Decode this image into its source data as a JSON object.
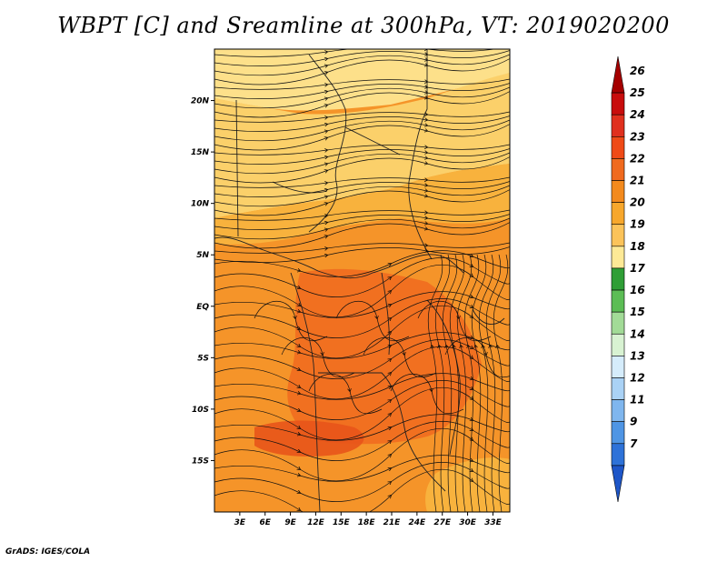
{
  "title": "WBPT [C] and Sreamline at 300hPa, VT: 2019020200",
  "footer": "GrADS: IGES/COLA",
  "map": {
    "lat_range": [
      -20,
      25
    ],
    "lon_range": [
      0,
      35
    ],
    "lat_ticks": [
      {
        "value": 20,
        "label": "20N"
      },
      {
        "value": 15,
        "label": "15N"
      },
      {
        "value": 10,
        "label": "10N"
      },
      {
        "value": 5,
        "label": "5N"
      },
      {
        "value": 0,
        "label": "EQ"
      },
      {
        "value": -5,
        "label": "5S"
      },
      {
        "value": -10,
        "label": "10S"
      },
      {
        "value": -15,
        "label": "15S"
      }
    ],
    "lon_ticks": [
      {
        "value": 3,
        "label": "3E"
      },
      {
        "value": 6,
        "label": "6E"
      },
      {
        "value": 9,
        "label": "9E"
      },
      {
        "value": 12,
        "label": "12E"
      },
      {
        "value": 15,
        "label": "15E"
      },
      {
        "value": 18,
        "label": "18E"
      },
      {
        "value": 21,
        "label": "21E"
      },
      {
        "value": 24,
        "label": "24E"
      },
      {
        "value": 27,
        "label": "27E"
      },
      {
        "value": 30,
        "label": "30E"
      },
      {
        "value": 33,
        "label": "33E"
      }
    ],
    "field_colors": {
      "pale": "#fde08a",
      "light": "#fbd06a",
      "mid": "#f8b23d",
      "orange": "#f59429",
      "deep": "#f06a1e",
      "red": "#e8541a"
    }
  },
  "colorbar": {
    "labels": [
      "26",
      "25",
      "24",
      "23",
      "22",
      "21",
      "20",
      "19",
      "18",
      "17",
      "16",
      "15",
      "14",
      "13",
      "12",
      "11",
      "9",
      "7"
    ],
    "colors": [
      "#a50000",
      "#c80d0d",
      "#e0301e",
      "#ef4a17",
      "#f06a1e",
      "#f38a1d",
      "#f7a72c",
      "#fbc35a",
      "#fde996",
      "#2f9e36",
      "#5cbd55",
      "#a2db97",
      "#d8f2d2",
      "#d5ecfb",
      "#aad2f5",
      "#7fb6ee",
      "#4f95e4",
      "#2e72d8",
      "#1e56c8"
    ]
  }
}
